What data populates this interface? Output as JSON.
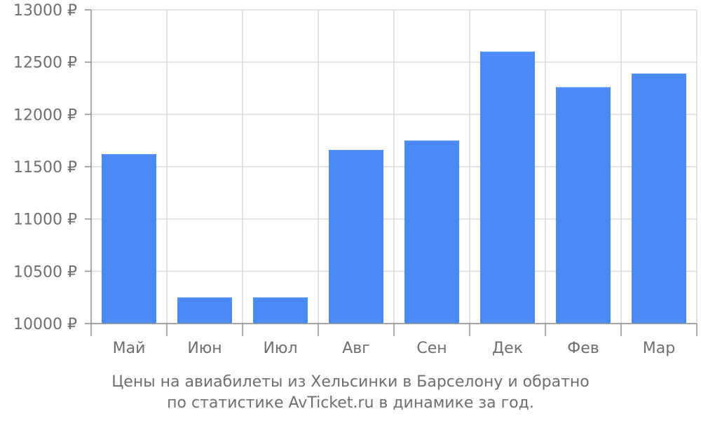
{
  "caption": {
    "line1": "Цены на авиабилеты из Хельсинки в Барселону и обратно",
    "line2": "по статистике AvTicket.ru в динамике за год."
  },
  "colors": {
    "bar": "#4c8af8",
    "grid": "#dcdcdc",
    "axis": "#8c8c8c",
    "tick_text": "#6e6e6e"
  },
  "chart_data": {
    "type": "bar",
    "categories": [
      "Май",
      "Июн",
      "Июл",
      "Авг",
      "Сен",
      "Дек",
      "Фев",
      "Мар"
    ],
    "values": [
      11620,
      10250,
      10250,
      11660,
      11750,
      12600,
      12260,
      12390
    ],
    "ylim": [
      10000,
      13000
    ],
    "yticks": [
      10000,
      10500,
      11000,
      11500,
      12000,
      12500,
      13000
    ],
    "ytick_labels": [
      "10000 ₽",
      "10500 ₽",
      "11000 ₽",
      "11500 ₽",
      "12000 ₽",
      "12500 ₽",
      "13000 ₽"
    ],
    "grid": true,
    "title": "",
    "xlabel": "",
    "ylabel": ""
  }
}
